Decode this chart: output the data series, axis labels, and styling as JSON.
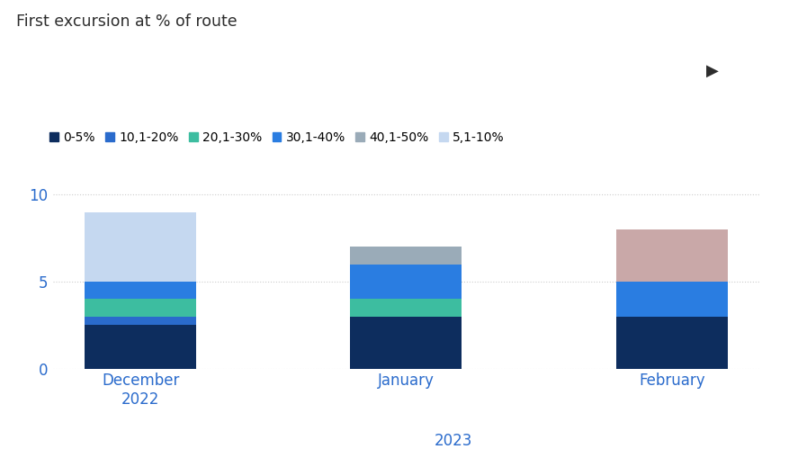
{
  "title": "First excursion at % of route",
  "categories": [
    "December\n2022",
    "January",
    "February"
  ],
  "year_label": "2023",
  "legend_labels": [
    "0-5%",
    "10,1-20%",
    "20,1-30%",
    "30,1-40%",
    "40,1-50%",
    "5,1-10%"
  ],
  "legend_colors": [
    "#0d2d5e",
    "#2a6bcc",
    "#3dbda0",
    "#2a7de1",
    "#9aabb8",
    "#c5d8f0"
  ],
  "series_order": [
    "0-5%",
    "10,1-20%",
    "20,1-30%",
    "30,1-40%",
    "40,1-50%",
    "5,1-10%"
  ],
  "series": {
    "0-5%": [
      2.5,
      3.0,
      3.0
    ],
    "10,1-20%": [
      0.5,
      0.0,
      0.0
    ],
    "20,1-30%": [
      1.0,
      1.0,
      0.0
    ],
    "30,1-40%": [
      1.0,
      2.0,
      2.0
    ],
    "40,1-50%": [
      0.0,
      1.0,
      0.0
    ],
    "5,1-10%": [
      4.0,
      0.0,
      3.0
    ]
  },
  "series_colors": {
    "0-5%": "#0d2d5e",
    "10,1-20%": "#2a6bcc",
    "20,1-30%": "#3dbda0",
    "30,1-40%": "#2a7de1",
    "40,1-50%": "#9aabb8",
    "5,1-10%": "#c5d8f0"
  },
  "feb_extra_color": "#c9a8a8",
  "ylim": [
    0,
    11
  ],
  "yticks": [
    0,
    5,
    10
  ],
  "bar_width": 0.42,
  "background_color": "#ffffff",
  "title_color": "#2d2d2d",
  "axis_label_color": "#2a6bcc"
}
